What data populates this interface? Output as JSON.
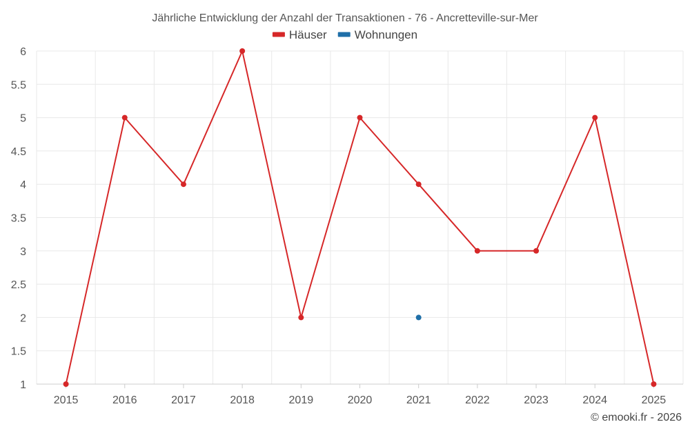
{
  "chart_data": {
    "type": "line",
    "title": "Jährliche Entwicklung der Anzahl der Transaktionen - 76 - Ancretteville-sur-Mer",
    "categories": [
      "2015",
      "2016",
      "2017",
      "2018",
      "2019",
      "2020",
      "2021",
      "2022",
      "2023",
      "2024",
      "2025"
    ],
    "ylim": [
      1,
      6
    ],
    "yticks": [
      "1",
      "1.5",
      "2",
      "2.5",
      "3",
      "3.5",
      "4",
      "4.5",
      "5",
      "5.5",
      "6"
    ],
    "grid": true,
    "legend_position": "top-center",
    "series": [
      {
        "name": "Häuser",
        "color": "#d62728",
        "values": [
          1,
          5,
          4,
          6,
          2,
          5,
          4,
          3,
          3,
          5,
          1
        ]
      },
      {
        "name": "Wohnungen",
        "color": "#1f6fa8",
        "values": [
          null,
          null,
          null,
          null,
          null,
          null,
          2,
          null,
          null,
          null,
          null
        ]
      }
    ],
    "credit": "© emooki.fr - 2026"
  }
}
